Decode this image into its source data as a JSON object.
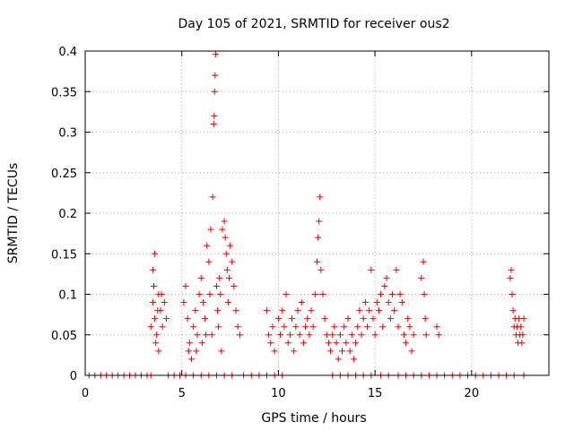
{
  "chart_data": {
    "type": "scatter",
    "title": "Day 105 of 2021, SRMTID for receiver ous2",
    "xlabel": "GPS time / hours",
    "ylabel": "SRMTID / TECUs",
    "xlim": [
      0,
      24
    ],
    "ylim": [
      0,
      0.4
    ],
    "x_ticks": [
      0,
      5,
      10,
      15,
      20
    ],
    "y_ticks": [
      0,
      0.05,
      0.1,
      0.15,
      0.2,
      0.25,
      0.3,
      0.35,
      0.4
    ],
    "x_tick_labels": [
      "0",
      "5",
      "10",
      "15",
      "20"
    ],
    "y_tick_labels": [
      "0",
      "0.05",
      "0.1",
      "0.15",
      "0.2",
      "0.25",
      "0.3",
      "0.35",
      "0.4"
    ],
    "grid": true,
    "marker": "+",
    "color": "#ee0000",
    "series": [
      {
        "name": "ous2",
        "points": [
          [
            0.2,
            0
          ],
          [
            0.5,
            0
          ],
          [
            0.8,
            0
          ],
          [
            1.1,
            0
          ],
          [
            1.4,
            0
          ],
          [
            1.7,
            0
          ],
          [
            2.0,
            0
          ],
          [
            2.3,
            0
          ],
          [
            2.6,
            0
          ],
          [
            2.9,
            0
          ],
          [
            3.2,
            0
          ],
          [
            3.4,
            0
          ],
          [
            3.4,
            0.06
          ],
          [
            3.5,
            0.09
          ],
          [
            3.5,
            0.13
          ],
          [
            3.6,
            0.15
          ],
          [
            3.6,
            0.07
          ],
          [
            3.7,
            0.05
          ],
          [
            3.8,
            0.1
          ],
          [
            3.8,
            0.03
          ],
          [
            3.9,
            0.08
          ],
          [
            4.0,
            0.06
          ],
          [
            4.1,
            0.09
          ],
          [
            4.2,
            0.07
          ],
          [
            3.55,
            0.11
          ],
          [
            3.65,
            0.04
          ],
          [
            3.75,
            0.08
          ],
          [
            3.95,
            0.1
          ],
          [
            4.3,
            0
          ],
          [
            4.6,
            0
          ],
          [
            4.9,
            0
          ],
          [
            5.2,
            0
          ],
          [
            5.6,
            0
          ],
          [
            6.0,
            0
          ],
          [
            6.4,
            0
          ],
          [
            6.8,
            0
          ],
          [
            7.2,
            0
          ],
          [
            7.6,
            0
          ],
          [
            5.1,
            0.09
          ],
          [
            5.2,
            0.11
          ],
          [
            5.3,
            0.07
          ],
          [
            5.4,
            0.04
          ],
          [
            5.5,
            0.02
          ],
          [
            5.6,
            0.06
          ],
          [
            5.7,
            0.08
          ],
          [
            5.8,
            0.05
          ],
          [
            5.9,
            0.1
          ],
          [
            6.0,
            0.12
          ],
          [
            6.1,
            0.09
          ],
          [
            6.2,
            0.07
          ],
          [
            6.25,
            0.05
          ],
          [
            5.35,
            0.03
          ],
          [
            5.75,
            0.03
          ],
          [
            6.05,
            0.04
          ],
          [
            6.3,
            0.16
          ],
          [
            6.4,
            0.14
          ],
          [
            6.5,
            0.18
          ],
          [
            6.6,
            0.22
          ],
          [
            6.65,
            0.31
          ],
          [
            6.68,
            0.32
          ],
          [
            6.7,
            0.35
          ],
          [
            6.72,
            0.37
          ],
          [
            6.75,
            0.396
          ],
          [
            6.8,
            0.11
          ],
          [
            6.85,
            0.08
          ],
          [
            6.9,
            0.06
          ],
          [
            6.95,
            0.12
          ],
          [
            7.0,
            0.1
          ],
          [
            7.1,
            0.18
          ],
          [
            7.2,
            0.19
          ],
          [
            7.3,
            0.15
          ],
          [
            7.35,
            0.13
          ],
          [
            7.4,
            0.09
          ],
          [
            7.5,
            0.16
          ],
          [
            7.6,
            0.14
          ],
          [
            7.7,
            0.11
          ],
          [
            7.8,
            0.08
          ],
          [
            7.9,
            0.06
          ],
          [
            8.0,
            0.05
          ],
          [
            6.45,
            0.1
          ],
          [
            6.55,
            0.05
          ],
          [
            7.05,
            0.03
          ],
          [
            7.25,
            0.17
          ],
          [
            7.45,
            0.12
          ],
          [
            8.2,
            0
          ],
          [
            8.6,
            0
          ],
          [
            9.0,
            0
          ],
          [
            9.4,
            0
          ],
          [
            9.8,
            0
          ],
          [
            10.2,
            0
          ],
          [
            9.4,
            0.08
          ],
          [
            9.5,
            0.05
          ],
          [
            9.6,
            0.04
          ],
          [
            9.7,
            0.06
          ],
          [
            9.8,
            0.03
          ],
          [
            10.0,
            0.07
          ],
          [
            10.1,
            0.05
          ],
          [
            10.2,
            0.08
          ],
          [
            10.3,
            0.06
          ],
          [
            10.4,
            0.1
          ],
          [
            10.5,
            0.04
          ],
          [
            10.6,
            0.05
          ],
          [
            10.7,
            0.07
          ],
          [
            10.8,
            0.03
          ],
          [
            10.9,
            0.06
          ],
          [
            11.0,
            0.08
          ],
          [
            11.1,
            0.05
          ],
          [
            11.2,
            0.09
          ],
          [
            11.3,
            0.04
          ],
          [
            11.4,
            0.06
          ],
          [
            11.5,
            0.07
          ],
          [
            11.6,
            0.05
          ],
          [
            11.7,
            0.08
          ],
          [
            11.8,
            0.06
          ],
          [
            11.9,
            0.1
          ],
          [
            12.0,
            0.14
          ],
          [
            12.05,
            0.17
          ],
          [
            12.1,
            0.19
          ],
          [
            12.15,
            0.22
          ],
          [
            12.2,
            0.13
          ],
          [
            12.3,
            0.1
          ],
          [
            12.4,
            0.07
          ],
          [
            12.5,
            0.05
          ],
          [
            12.6,
            0.04
          ],
          [
            12.7,
            0.03
          ],
          [
            12.8,
            0.05
          ],
          [
            12.9,
            0.06
          ],
          [
            13.0,
            0.04
          ],
          [
            13.1,
            0.02
          ],
          [
            13.2,
            0.05
          ],
          [
            13.3,
            0.03
          ],
          [
            13.4,
            0.06
          ],
          [
            13.5,
            0.04
          ],
          [
            13.6,
            0.07
          ],
          [
            13.7,
            0.03
          ],
          [
            13.8,
            0.05
          ],
          [
            13.9,
            0.02
          ],
          [
            14.0,
            0.04
          ],
          [
            14.1,
            0.06
          ],
          [
            14.2,
            0.08
          ],
          [
            14.3,
            0.05
          ],
          [
            14.4,
            0.07
          ],
          [
            14.5,
            0.09
          ],
          [
            14.6,
            0.06
          ],
          [
            14.7,
            0.08
          ],
          [
            14.8,
            0.13
          ],
          [
            14.9,
            0.07
          ],
          [
            15.0,
            0.05
          ],
          [
            15.1,
            0.09
          ],
          [
            15.2,
            0.08
          ],
          [
            15.3,
            0.1
          ],
          [
            15.4,
            0.06
          ],
          [
            15.5,
            0.11
          ],
          [
            15.6,
            0.12
          ],
          [
            15.7,
            0.09
          ],
          [
            15.8,
            0.07
          ],
          [
            15.9,
            0.1
          ],
          [
            16.0,
            0.08
          ],
          [
            16.1,
            0.13
          ],
          [
            16.2,
            0.06
          ],
          [
            16.3,
            0.1
          ],
          [
            16.4,
            0.09
          ],
          [
            16.5,
            0.05
          ],
          [
            16.6,
            0.04
          ],
          [
            16.7,
            0.07
          ],
          [
            16.8,
            0.06
          ],
          [
            16.9,
            0.03
          ],
          [
            17.0,
            0.05
          ],
          [
            12.8,
            0
          ],
          [
            13.2,
            0
          ],
          [
            13.6,
            0
          ],
          [
            14.0,
            0
          ],
          [
            14.4,
            0
          ],
          [
            14.8,
            0
          ],
          [
            15.3,
            0
          ],
          [
            15.7,
            0
          ],
          [
            16.2,
            0
          ],
          [
            16.6,
            0
          ],
          [
            17.0,
            0
          ],
          [
            17.5,
            0.14
          ],
          [
            17.55,
            0.1
          ],
          [
            17.6,
            0.07
          ],
          [
            17.65,
            0.05
          ],
          [
            17.4,
            0.12
          ],
          [
            18.2,
            0.06
          ],
          [
            18.3,
            0.05
          ],
          [
            17.4,
            0
          ],
          [
            17.8,
            0
          ],
          [
            18.2,
            0
          ],
          [
            18.6,
            0
          ],
          [
            19.0,
            0
          ],
          [
            19.4,
            0
          ],
          [
            19.8,
            0
          ],
          [
            20.2,
            0
          ],
          [
            20.6,
            0
          ],
          [
            21.0,
            0
          ],
          [
            21.4,
            0
          ],
          [
            21.8,
            0
          ],
          [
            22.2,
            0
          ],
          [
            22.7,
            0
          ],
          [
            22.0,
            0.12
          ],
          [
            22.05,
            0.13
          ],
          [
            22.1,
            0.1
          ],
          [
            22.15,
            0.08
          ],
          [
            22.2,
            0.06
          ],
          [
            22.25,
            0.07
          ],
          [
            22.3,
            0.05
          ],
          [
            22.35,
            0.06
          ],
          [
            22.4,
            0.04
          ],
          [
            22.45,
            0.07
          ],
          [
            22.5,
            0.05
          ],
          [
            22.55,
            0.06
          ],
          [
            22.6,
            0.04
          ],
          [
            22.65,
            0.05
          ],
          [
            22.7,
            0.07
          ]
        ]
      }
    ]
  }
}
